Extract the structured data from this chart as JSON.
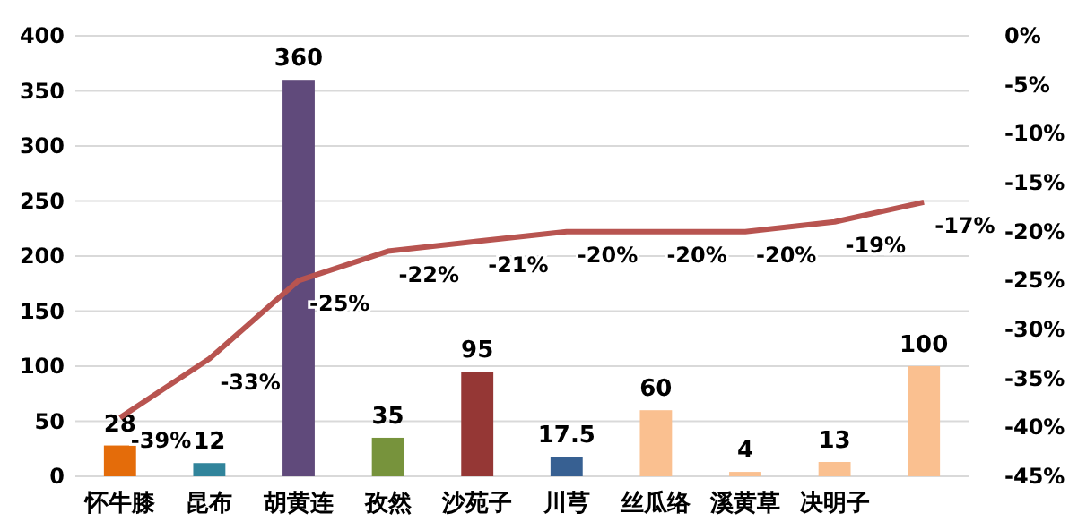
{
  "chart_data": {
    "type": "bar",
    "categories": [
      "怀牛膝",
      "昆布",
      "胡黄连",
      "孜然",
      "沙苑子",
      "川芎",
      "丝瓜络",
      "溪黄草",
      "决明子",
      null
    ],
    "series": [
      {
        "values": [
          28,
          12,
          360,
          35,
          95,
          17.5,
          60,
          4,
          13,
          100
        ],
        "colors": [
          "#e46c0a",
          "#31849b",
          "#604a7b",
          "#77933c",
          "#953735",
          "#376092",
          "#fac090",
          "#fac090",
          "#fac090",
          "#fac090"
        ],
        "value_labels": [
          "28",
          "12",
          "360",
          "35",
          "95",
          "17.5",
          "60",
          "4",
          "13",
          "100"
        ]
      },
      {
        "type": "line",
        "axis": "y2",
        "color": "#b85450",
        "values": [
          -39,
          -33,
          -25,
          -22,
          -21,
          -20,
          -20,
          -20,
          -19,
          -17
        ],
        "value_labels": [
          "-39%",
          "-33%",
          "-25%",
          "-22%",
          "-21%",
          "-20%",
          "-20%",
          "-20%",
          "-19%",
          "-17%"
        ]
      }
    ],
    "ylim": [
      0,
      400
    ],
    "yticks": [
      0,
      50,
      100,
      150,
      200,
      250,
      300,
      350,
      400
    ],
    "y2lim": [
      -45,
      0
    ],
    "y2ticks": [
      {
        "value": 0,
        "label": "0%"
      },
      {
        "value": -5,
        "label": "-5%"
      },
      {
        "value": -10,
        "label": "-10%"
      },
      {
        "value": -15,
        "label": "-15%"
      },
      {
        "value": -20,
        "label": "-20%"
      },
      {
        "value": -25,
        "label": "-25%"
      },
      {
        "value": -30,
        "label": "-30%"
      },
      {
        "value": -35,
        "label": "-35%"
      },
      {
        "value": -40,
        "label": "-40%"
      },
      {
        "value": -45,
        "label": "-45%"
      }
    ],
    "grid": "y",
    "marker": "none",
    "line_style": "solid"
  }
}
